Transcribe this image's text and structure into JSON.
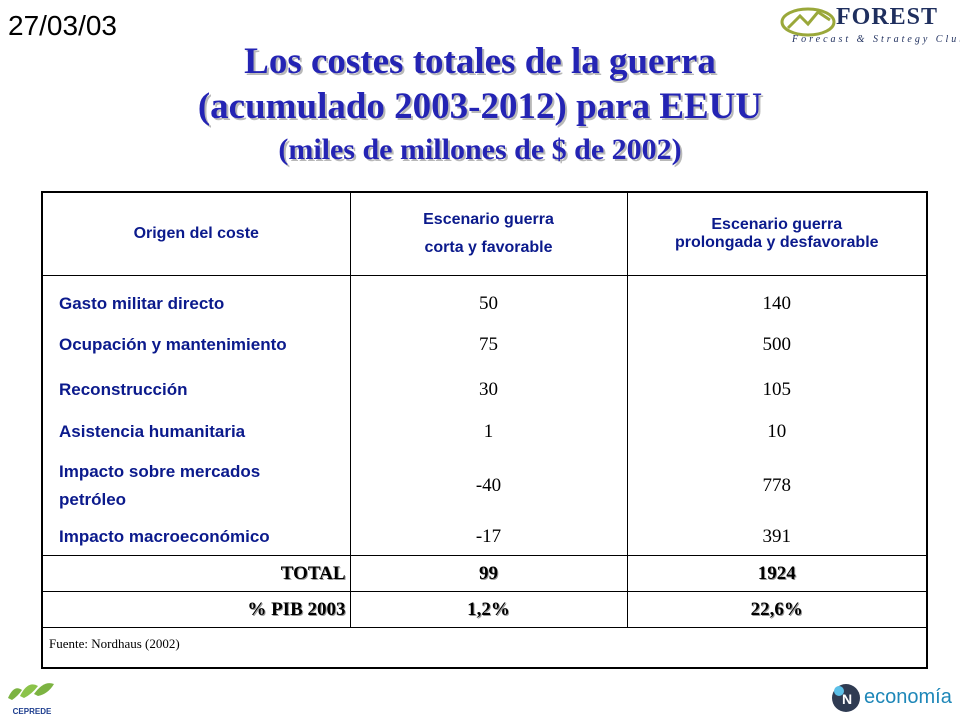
{
  "date": "27/03/03",
  "logo": {
    "name": "FOREST",
    "tagline": "Forecast & Strategy Club"
  },
  "title": {
    "line1": "Los costes totales de la guerra",
    "line2": "(acumulado 2003-2012) para EEUU",
    "line3": "(miles de millones de $ de 2002)"
  },
  "table": {
    "headers": {
      "col1": "Origen del coste",
      "col2_line1": "Escenario guerra",
      "col2_line2": "corta y favorable",
      "col3_line1": "Escenario guerra",
      "col3_line2": "prolongada y desfavorable"
    },
    "rows": [
      {
        "label": "Gasto militar directo",
        "short": "50",
        "long": "140"
      },
      {
        "label": "Ocupación y mantenimiento",
        "short": "75",
        "long": "500"
      },
      {
        "label": "Reconstrucción",
        "short": "30",
        "long": "105"
      },
      {
        "label": "Asistencia humanitaria",
        "short": "1",
        "long": "10"
      },
      {
        "label_line1": "Impacto sobre mercados",
        "label_line2": "petróleo",
        "short": "-40",
        "long": "778"
      },
      {
        "label": "Impacto macroeconómico",
        "short": "-17",
        "long": "391"
      }
    ],
    "total": {
      "label": "TOTAL",
      "short": "99",
      "long": "1924"
    },
    "pib": {
      "label": "% PIB 2003",
      "short": "1,2%",
      "long": "22,6%"
    },
    "source": "Fuente: Nordhaus (2002)"
  },
  "footer": {
    "left_logo": "CEPREDE",
    "right_logo": "economía"
  },
  "colors": {
    "title": "#2424b4",
    "table_text": "#0b1a8c",
    "border": "#000000"
  }
}
